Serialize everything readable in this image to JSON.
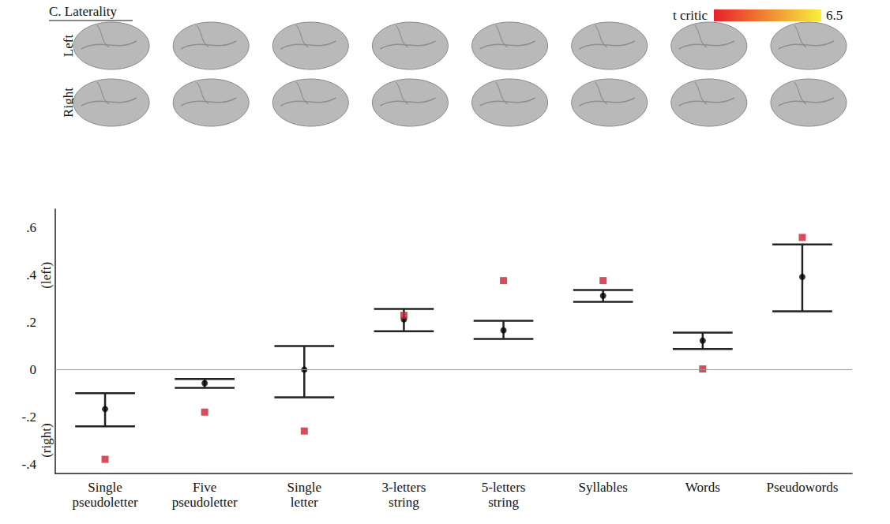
{
  "chart_data": {
    "type": "scatter",
    "title": "C. Laterality",
    "brain_rows": [
      "Left",
      "Right"
    ],
    "colorbar": {
      "label": "t critic",
      "max": 6.5,
      "colors": [
        "#e8202a",
        "#f7f03c"
      ]
    },
    "categories": [
      "Single pseudoletter",
      "Five pseudoletter",
      "Single letter",
      "3-letters string",
      "5-letters string",
      "Syllables",
      "Words",
      "Pseudowords"
    ],
    "series": [
      {
        "type": "scatter",
        "color": "#000000",
        "marker": "circle",
        "values": [
          -0.167,
          -0.057,
          0.0,
          0.213,
          0.167,
          0.313,
          0.123,
          0.393
        ],
        "ci_low": [
          -0.24,
          -0.077,
          -0.117,
          0.163,
          0.13,
          0.287,
          0.087,
          0.247
        ],
        "ci_high": [
          -0.1,
          -0.04,
          0.1,
          0.257,
          0.207,
          0.337,
          0.157,
          0.53
        ]
      },
      {
        "type": "scatter",
        "color": "#cc2233",
        "marker": "square",
        "values": [
          -0.38,
          -0.18,
          -0.26,
          0.23,
          0.377,
          0.377,
          0.003,
          0.56
        ]
      }
    ],
    "annotations": [
      {
        "text": "(left)",
        "y": 0.4
      },
      {
        "text": "(right)",
        "y": -0.3
      }
    ],
    "ylim": [
      -0.44,
      0.68
    ],
    "yticks": [
      {
        "value": -0.4,
        "label": "-.4"
      },
      {
        "value": -0.2,
        "label": "-.2"
      },
      0,
      {
        "value": 0.2,
        "label": ".2"
      },
      {
        "value": 0.4,
        "label": ".4"
      },
      {
        "value": 0.6,
        "label": ".6"
      }
    ],
    "grid": false
  }
}
